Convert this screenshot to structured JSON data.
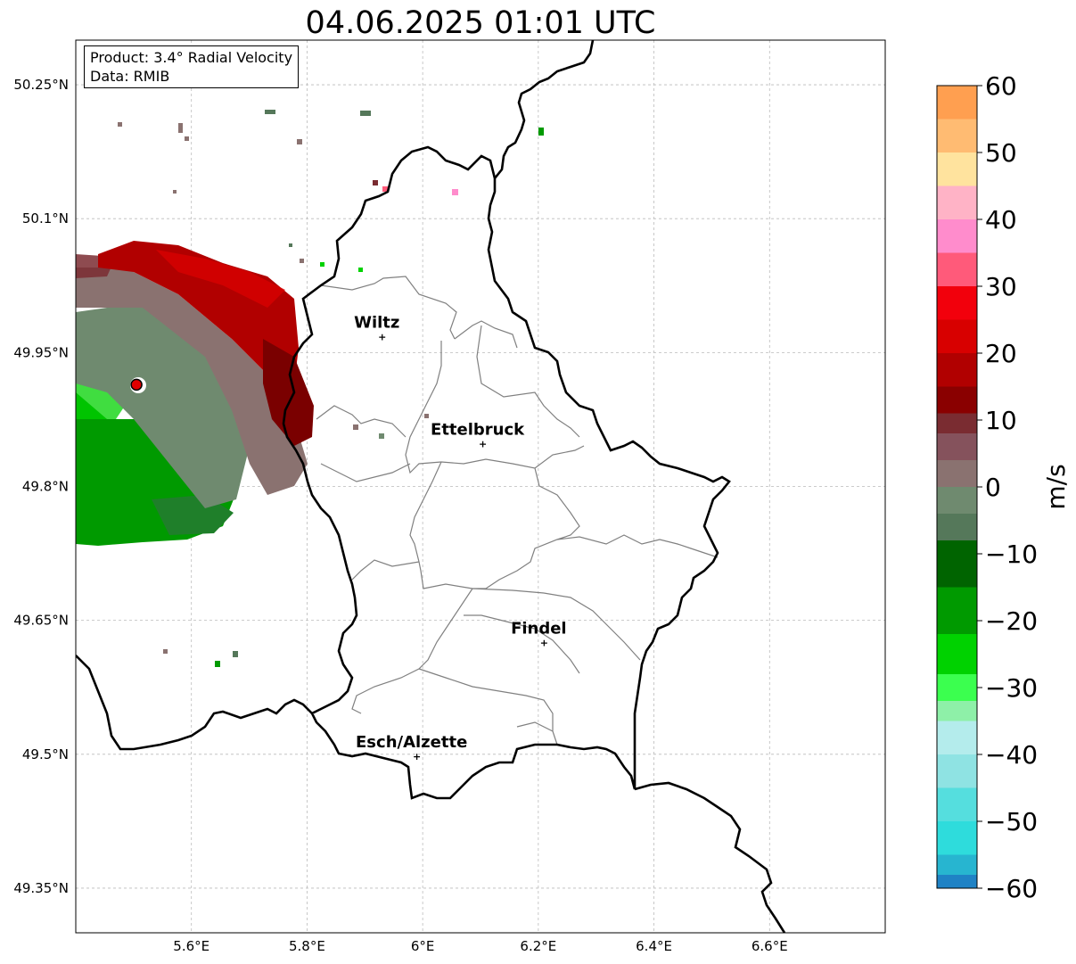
{
  "title": "04.06.2025 01:01 UTC",
  "info": {
    "product": "Product: 3.4° Radial Velocity",
    "data": "Data: RMIB"
  },
  "map": {
    "lon_range": [
      5.4,
      6.8
    ],
    "lat_range": [
      49.3,
      50.3
    ],
    "lat_ticks": [
      {
        "value": 50.25,
        "label": "50.25°N"
      },
      {
        "value": 50.1,
        "label": "50.1°N"
      },
      {
        "value": 49.95,
        "label": "49.95°N"
      },
      {
        "value": 49.8,
        "label": "49.8°N"
      },
      {
        "value": 49.65,
        "label": "49.65°N"
      },
      {
        "value": 49.5,
        "label": "49.5°N"
      },
      {
        "value": 49.35,
        "label": "49.35°N"
      }
    ],
    "lon_ticks": [
      {
        "value": 5.6,
        "label": "5.6°E"
      },
      {
        "value": 5.8,
        "label": "5.8°E"
      },
      {
        "value": 6.0,
        "label": "6°E"
      },
      {
        "value": 6.2,
        "label": "6.2°E"
      },
      {
        "value": 6.4,
        "label": "6.4°E"
      },
      {
        "value": 6.6,
        "label": "6.6°E"
      }
    ],
    "gridlines": true,
    "radar_site": {
      "lon": 5.505,
      "lat": 49.914
    },
    "cities": [
      {
        "name": "Wiltz",
        "lon": 5.93,
        "lat": 49.968
      },
      {
        "name": "Ettelbruck",
        "lon": 6.104,
        "lat": 49.848
      },
      {
        "name": "Findel",
        "lon": 6.21,
        "lat": 49.625
      },
      {
        "name": "Esch/Alzette",
        "lon": 5.99,
        "lat": 49.498
      }
    ]
  },
  "colorbar": {
    "min": -60,
    "max": 60,
    "ticks": [
      {
        "value": 60,
        "label": "60"
      },
      {
        "value": 50,
        "label": "50"
      },
      {
        "value": 40,
        "label": "40"
      },
      {
        "value": 30,
        "label": "30"
      },
      {
        "value": 20,
        "label": "20"
      },
      {
        "value": 10,
        "label": "10"
      },
      {
        "value": 0,
        "label": "0"
      },
      {
        "value": -10,
        "label": "−10"
      },
      {
        "value": -20,
        "label": "−20"
      },
      {
        "value": -30,
        "label": "−30"
      },
      {
        "value": -40,
        "label": "−40"
      },
      {
        "value": -50,
        "label": "−50"
      },
      {
        "value": -60,
        "label": "−60"
      }
    ],
    "unit": "m/s",
    "stops": [
      {
        "from": 55,
        "to": 60,
        "color": "#ff9f50"
      },
      {
        "from": 50,
        "to": 55,
        "color": "#ffbb72"
      },
      {
        "from": 45,
        "to": 50,
        "color": "#ffe39e"
      },
      {
        "from": 40,
        "to": 45,
        "color": "#ffb3c6"
      },
      {
        "from": 35,
        "to": 40,
        "color": "#ff8ccc"
      },
      {
        "from": 30,
        "to": 35,
        "color": "#ff5a7a"
      },
      {
        "from": 25,
        "to": 30,
        "color": "#f2000c"
      },
      {
        "from": 20,
        "to": 25,
        "color": "#d80000"
      },
      {
        "from": 15,
        "to": 20,
        "color": "#b10000"
      },
      {
        "from": 11,
        "to": 15,
        "color": "#8a0000"
      },
      {
        "from": 8,
        "to": 11,
        "color": "#7a2c31"
      },
      {
        "from": 4,
        "to": 8,
        "color": "#85525c"
      },
      {
        "from": 0,
        "to": 4,
        "color": "#8a7270"
      },
      {
        "from": -4,
        "to": 0,
        "color": "#6f8a6f"
      },
      {
        "from": -8,
        "to": -4,
        "color": "#55785a"
      },
      {
        "from": -15,
        "to": -8,
        "color": "#006400"
      },
      {
        "from": -22,
        "to": -15,
        "color": "#009a00"
      },
      {
        "from": -28,
        "to": -22,
        "color": "#00d200"
      },
      {
        "from": -32,
        "to": -28,
        "color": "#3bff4f"
      },
      {
        "from": -35,
        "to": -32,
        "color": "#8ef0a8"
      },
      {
        "from": -40,
        "to": -35,
        "color": "#b4ecec"
      },
      {
        "from": -45,
        "to": -40,
        "color": "#8fe3e3"
      },
      {
        "from": -50,
        "to": -45,
        "color": "#55dede"
      },
      {
        "from": -55,
        "to": -50,
        "color": "#2edcdc"
      },
      {
        "from": -58,
        "to": -55,
        "color": "#27b5d0"
      },
      {
        "from": -60,
        "to": -58,
        "color": "#1f82c5"
      }
    ]
  }
}
